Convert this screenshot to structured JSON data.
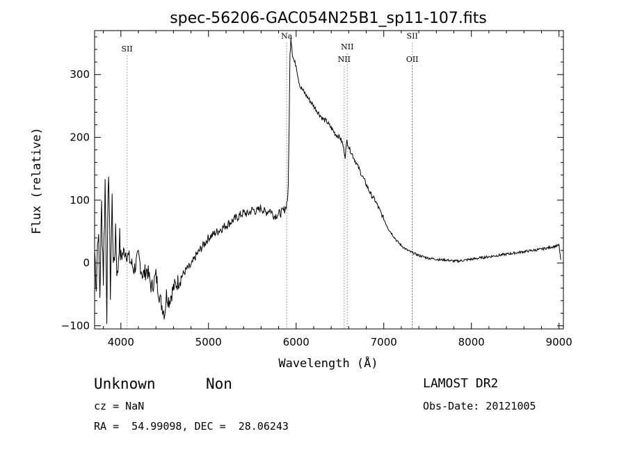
{
  "chart_data": {
    "type": "line",
    "title": "spec-56206-GAC054N25B1_sp11-107.fits",
    "xlabel": "Wavelength (Å)",
    "ylabel": "Flux (relative)",
    "xlim": [
      3700,
      9050
    ],
    "ylim": [
      -105,
      370
    ],
    "xticks": [
      4000,
      5000,
      6000,
      7000,
      8000,
      9000
    ],
    "xtick_labels": [
      "4000",
      "5000",
      "6000",
      "7000",
      "8000",
      "9000"
    ],
    "yticks": [
      -100,
      0,
      100,
      200,
      300
    ],
    "ytick_labels": [
      "−100",
      "0",
      "100",
      "200",
      "300"
    ],
    "grid": false,
    "series": [
      {
        "x": [
          3700,
          3720,
          3740,
          3760,
          3780,
          3800,
          3820,
          3840,
          3860,
          3880,
          3900,
          3920,
          3940,
          3960,
          3980,
          4000,
          4050,
          4100,
          4150,
          4200,
          4250,
          4300,
          4350,
          4400,
          4450,
          4500,
          4520,
          4550,
          4600,
          4650,
          4700,
          4750,
          4800,
          4850,
          4900,
          4950,
          5000,
          5050,
          5100,
          5150,
          5200,
          5250,
          5300,
          5350,
          5400,
          5450,
          5500,
          5550,
          5600,
          5650,
          5700,
          5750,
          5800,
          5850,
          5880,
          5900,
          5910,
          5920,
          5930,
          5940,
          5950,
          5960,
          5980,
          6000,
          6030,
          6050,
          6100,
          6150,
          6200,
          6250,
          6300,
          6350,
          6400,
          6450,
          6500,
          6530,
          6560,
          6580,
          6600,
          6650,
          6700,
          6750,
          6800,
          6850,
          6900,
          6950,
          7000,
          7050,
          7100,
          7150,
          7200,
          7250,
          7300,
          7350,
          7400,
          7450,
          7500,
          7550,
          7600,
          7650,
          7700,
          7750,
          7800,
          7850,
          7900,
          7950,
          8000,
          8100,
          8200,
          8300,
          8400,
          8500,
          8600,
          8700,
          8800,
          8900,
          9000,
          9020
        ],
        "y": [
          20,
          -30,
          60,
          -50,
          90,
          -20,
          130,
          -70,
          160,
          -40,
          100,
          -20,
          60,
          -30,
          40,
          10,
          20,
          5,
          -10,
          10,
          -20,
          -10,
          -40,
          -20,
          -60,
          -80,
          -50,
          -60,
          -40,
          -30,
          -20,
          -10,
          -5,
          10,
          20,
          30,
          40,
          45,
          50,
          55,
          60,
          65,
          70,
          75,
          80,
          78,
          85,
          82,
          88,
          80,
          85,
          75,
          78,
          82,
          88,
          100,
          120,
          220,
          330,
          360,
          345,
          330,
          320,
          315,
          290,
          280,
          270,
          260,
          250,
          240,
          230,
          225,
          215,
          205,
          200,
          190,
          170,
          195,
          185,
          170,
          155,
          140,
          125,
          110,
          100,
          85,
          70,
          55,
          45,
          35,
          28,
          22,
          18,
          15,
          12,
          10,
          8,
          7,
          6,
          5,
          5,
          4,
          3,
          3,
          4,
          5,
          6,
          8,
          10,
          12,
          14,
          16,
          18,
          20,
          22,
          25,
          28,
          5
        ]
      }
    ],
    "line_labels": [
      {
        "label": "SII",
        "x": 4070,
        "label_y": 337
      },
      {
        "label": "Na",
        "x": 5893,
        "label_y": 357
      },
      {
        "label": "NII",
        "x": 6548,
        "label_y": 320
      },
      {
        "label": "NII",
        "x": 6584,
        "label_y": 340
      },
      {
        "label": "OII",
        "x": 7325,
        "label_y": 320
      },
      {
        "label": "SII",
        "x": 7325,
        "label_y": 357
      }
    ]
  },
  "footer": {
    "object_class": "Unknown",
    "subclass": "Non",
    "survey": "LAMOST DR2",
    "redshift": "cz = NaN",
    "obs_date": "Obs-Date: 20121005",
    "coords": "RA =  54.99098, DEC =  28.06243"
  }
}
